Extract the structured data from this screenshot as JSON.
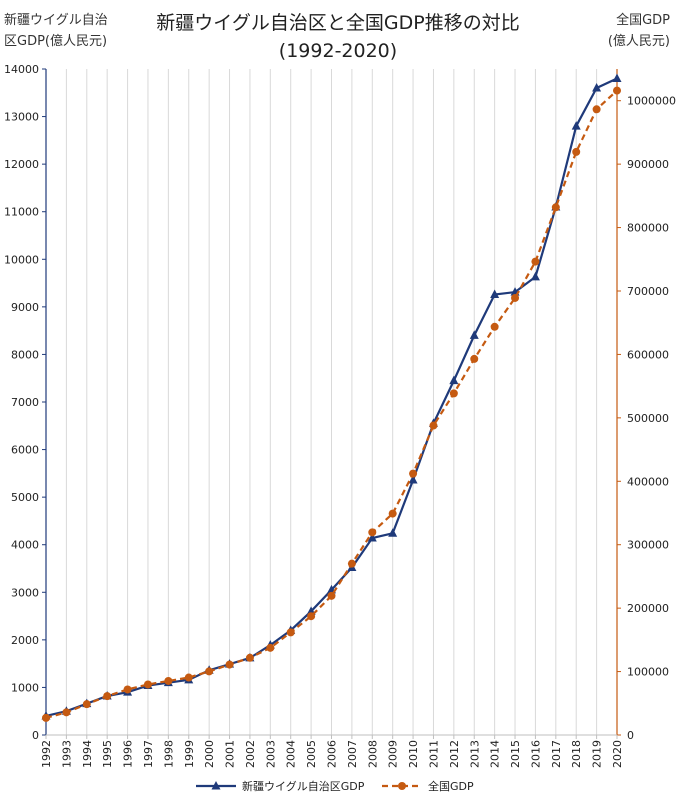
{
  "chart_data": {
    "type": "line",
    "title_line1": "新疆ウイグル自治区と全国GDP推移の対比",
    "title_line2": "(1992-2020)",
    "ylabel_left_line1": "新疆ウイグル自治",
    "ylabel_left_line2": "区GDP(億人民元)",
    "ylabel_right_line1": "全国GDP",
    "ylabel_right_line2": "(億人民元)",
    "x": [
      "1992",
      "1993",
      "1994",
      "1995",
      "1996",
      "1997",
      "1998",
      "1999",
      "2000",
      "2001",
      "2002",
      "2003",
      "2004",
      "2005",
      "2006",
      "2007",
      "2008",
      "2009",
      "2010",
      "2011",
      "2012",
      "2013",
      "2014",
      "2015",
      "2016",
      "2017",
      "2018",
      "2019",
      "2020"
    ],
    "ylim_left": [
      0,
      14000
    ],
    "yticks_left": [
      0,
      1000,
      2000,
      3000,
      4000,
      5000,
      6000,
      7000,
      8000,
      9000,
      10000,
      11000,
      12000,
      13000,
      14000
    ],
    "ylim_right": [
      0,
      1050000
    ],
    "yticks_right": [
      0,
      100000,
      200000,
      300000,
      400000,
      500000,
      600000,
      700000,
      800000,
      900000,
      1000000
    ],
    "grid": "vertical",
    "legend_position": "bottom",
    "series": [
      {
        "name": "新疆ウイグル自治区GDP",
        "axis": "left",
        "color": "#1f3a7a",
        "marker": "triangle",
        "line": "solid",
        "values": [
          400,
          500,
          660,
          820,
          900,
          1040,
          1100,
          1160,
          1360,
          1490,
          1620,
          1890,
          2200,
          2600,
          3050,
          3520,
          4140,
          4240,
          5360,
          6550,
          7450,
          8400,
          9260,
          9310,
          9630,
          11100,
          12800,
          13600,
          13800
        ]
      },
      {
        "name": "全国GDP",
        "axis": "right",
        "color": "#c55a11",
        "marker": "circle",
        "line": "dashed",
        "values": [
          27000,
          35700,
          48600,
          61300,
          71800,
          79700,
          85200,
          90600,
          100300,
          111000,
          121700,
          137400,
          161800,
          187300,
          219400,
          270100,
          319500,
          349100,
          412100,
          487900,
          538600,
          592900,
          643600,
          689000,
          746400,
          832000,
          919300,
          986500,
          1015986
        ]
      }
    ]
  }
}
